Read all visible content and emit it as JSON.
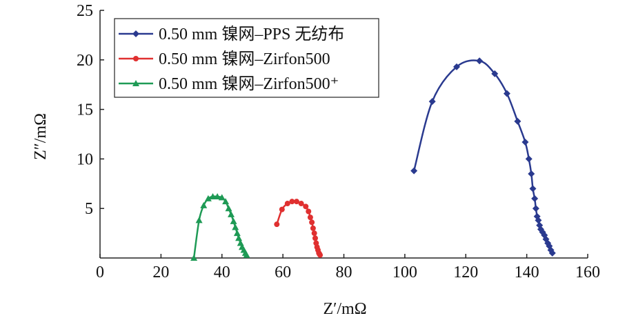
{
  "chart_data": {
    "type": "line",
    "xlabel": "Z′/mΩ",
    "ylabel": "Z″/mΩ",
    "xlim": [
      0,
      160
    ],
    "ylim": [
      0,
      25
    ],
    "xticks": [
      0,
      20,
      40,
      60,
      80,
      100,
      120,
      140,
      160
    ],
    "yticks": [
      5,
      10,
      15,
      20,
      25
    ],
    "grid": false,
    "legend_position": "top-left",
    "series": [
      {
        "name": "0.50 mm 镍网–PPS 无纺布",
        "color": "#2a3a8f",
        "marker": "diamond",
        "points": [
          [
            103.0,
            8.8
          ],
          [
            109.0,
            15.8
          ],
          [
            117.0,
            19.3
          ],
          [
            124.5,
            19.9
          ],
          [
            129.5,
            18.6
          ],
          [
            133.5,
            16.6
          ],
          [
            137.0,
            13.8
          ],
          [
            139.5,
            11.7
          ],
          [
            140.7,
            10.0
          ],
          [
            141.5,
            8.5
          ],
          [
            142.0,
            7.0
          ],
          [
            142.6,
            6.0
          ],
          [
            143.0,
            5.0
          ],
          [
            143.4,
            4.2
          ],
          [
            143.8,
            3.8
          ],
          [
            144.2,
            3.3
          ],
          [
            144.6,
            2.9
          ],
          [
            145.2,
            2.6
          ],
          [
            145.8,
            2.3
          ],
          [
            146.3,
            1.9
          ],
          [
            146.9,
            1.5
          ],
          [
            147.4,
            1.2
          ],
          [
            147.9,
            0.8
          ],
          [
            148.4,
            0.5
          ]
        ]
      },
      {
        "name": "0.50 mm 镍网–Zirfon500",
        "color": "#e03030",
        "marker": "circle",
        "points": [
          [
            58.0,
            3.4
          ],
          [
            59.7,
            4.9
          ],
          [
            61.5,
            5.5
          ],
          [
            63.0,
            5.7
          ],
          [
            64.5,
            5.7
          ],
          [
            66.0,
            5.5
          ],
          [
            67.5,
            5.2
          ],
          [
            68.4,
            4.7
          ],
          [
            69.0,
            4.1
          ],
          [
            69.5,
            3.6
          ],
          [
            69.9,
            3.0
          ],
          [
            70.3,
            2.5
          ],
          [
            70.6,
            2.0
          ],
          [
            70.9,
            1.5
          ],
          [
            71.2,
            1.1
          ],
          [
            71.5,
            0.8
          ],
          [
            71.8,
            0.5
          ],
          [
            72.0,
            0.4
          ],
          [
            72.2,
            0.3
          ]
        ]
      },
      {
        "name": "0.50 mm 镍网–Zirfon500⁺",
        "color": "#1e9a55",
        "marker": "triangle",
        "points": [
          [
            30.8,
            0.0
          ],
          [
            32.5,
            3.8
          ],
          [
            34.0,
            5.3
          ],
          [
            35.5,
            6.0
          ],
          [
            37.0,
            6.2
          ],
          [
            38.5,
            6.2
          ],
          [
            40.0,
            6.1
          ],
          [
            41.2,
            5.7
          ],
          [
            42.2,
            5.0
          ],
          [
            43.0,
            4.4
          ],
          [
            43.8,
            3.7
          ],
          [
            44.4,
            3.1
          ],
          [
            45.0,
            2.5
          ],
          [
            45.5,
            2.0
          ],
          [
            46.1,
            1.5
          ],
          [
            46.6,
            1.1
          ],
          [
            47.2,
            0.8
          ],
          [
            47.7,
            0.5
          ],
          [
            48.1,
            0.3
          ]
        ]
      }
    ]
  }
}
